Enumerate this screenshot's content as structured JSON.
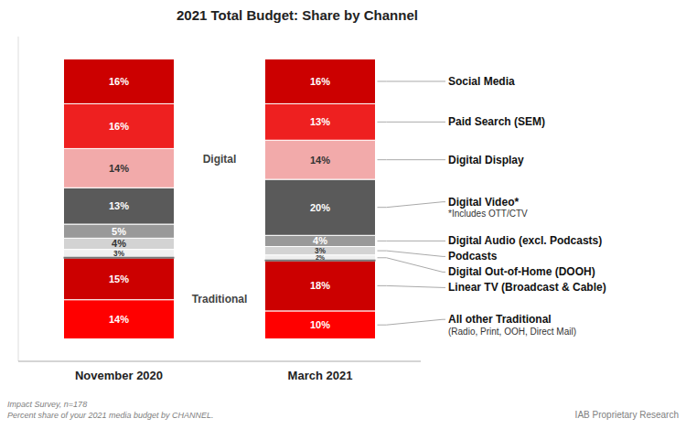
{
  "chart_data": {
    "type": "bar",
    "stacked": true,
    "data_labels": true,
    "tick_labels": "x",
    "grid": false,
    "title": "2021 Total Budget: Share by Channel",
    "categories": [
      "November 2020",
      "March 2021"
    ],
    "ylim": [
      -8,
      108
    ],
    "series": [
      {
        "name": "All other Traditional",
        "note": "(Radio, Print, OOH, Direct Mail)",
        "group": "Traditional",
        "color": "#FF0000",
        "values": [
          14,
          10
        ],
        "value_labels": [
          "14%",
          "10%"
        ]
      },
      {
        "name": "Linear TV (Broadcast & Cable)",
        "group": "Traditional",
        "color": "#CC0000",
        "values": [
          15,
          18
        ],
        "value_labels": [
          "15%",
          "18%"
        ]
      },
      {
        "name": "Digital Out-of-Home (DOOH)",
        "group": "Digital",
        "color": "#EFEFEF",
        "values": [
          3,
          2
        ],
        "value_labels": [
          "3%",
          "2%"
        ]
      },
      {
        "name": "Podcasts",
        "group": "Digital",
        "color": "#D3D3D3",
        "values": [
          4,
          3
        ],
        "value_labels": [
          "4%",
          "3%"
        ]
      },
      {
        "name": "Digital Audio (excl. Podcasts)",
        "group": "Digital",
        "color": "#999999",
        "values": [
          5,
          4
        ],
        "value_labels": [
          "5%",
          "4%"
        ]
      },
      {
        "name": "Digital Video*",
        "note": "*Includes OTT/CTV",
        "group": "Digital",
        "color": "#5A5A5A",
        "values": [
          13,
          20
        ],
        "value_labels": [
          "13%",
          "20%"
        ]
      },
      {
        "name": "Digital Display",
        "group": "Digital",
        "color": "#F2AAAA",
        "values": [
          14,
          14
        ],
        "value_labels": [
          "14%",
          "14%"
        ]
      },
      {
        "name": "Paid Search (SEM)",
        "group": "Digital",
        "color": "#EE2020",
        "values": [
          16,
          13
        ],
        "value_labels": [
          "16%",
          "13%"
        ]
      },
      {
        "name": "Social Media",
        "group": "Digital",
        "color": "#CC0000",
        "values": [
          16,
          16
        ],
        "value_labels": [
          "16%",
          "16%"
        ]
      }
    ],
    "notes": [
      "Impact Survey, n=178",
      "Percent share of your 2021 media budget by CHANNEL."
    ],
    "source": "IAB Proprietary Research"
  }
}
